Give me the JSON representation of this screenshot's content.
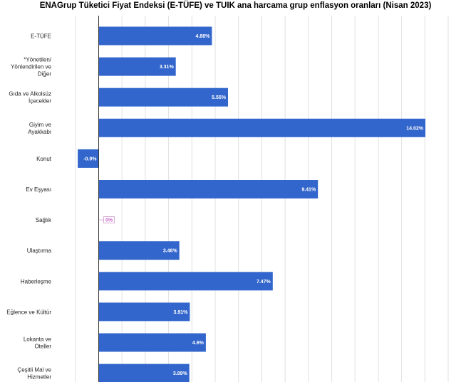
{
  "chart_data": {
    "type": "bar",
    "orientation": "horizontal",
    "title": "ENAGrup Tüketici Fiyat Endeksi (E-TÜFE) ve TUIK ana harcama grup enflasyon oranları (Nisan 2023)",
    "categories": [
      [
        "E-TÜFE"
      ],
      [
        "*Yönetilen/",
        "Yönlendirilen ve",
        "Diğer"
      ],
      [
        "Gıda ve Alkolsüz",
        "İçecekler"
      ],
      [
        "Giyim ve",
        "Ayakkabı"
      ],
      [
        "Konut"
      ],
      [
        "Ev Eşyası"
      ],
      [
        "Sağlık"
      ],
      [
        "Ulaştırma"
      ],
      [
        "Haberleşme"
      ],
      [
        "Eğlence ve Kültür"
      ],
      [
        "Lokanta ve",
        "Oteller"
      ],
      [
        "Çeşitli Mal ve",
        "Hizmetler"
      ]
    ],
    "values": [
      4.86,
      3.31,
      5.55,
      14.02,
      -0.9,
      9.41,
      0,
      3.46,
      7.47,
      3.91,
      4.6,
      3.89
    ],
    "value_labels": [
      "4.86%",
      "3.31%",
      "5.55%",
      "14.02%",
      "-0.9%",
      "9.41%",
      "0%",
      "3.46%",
      "7.47%",
      "3.91%",
      "4.6%",
      "3.89%"
    ],
    "bar_color": "#3366cc",
    "grid": true,
    "legend": "none"
  }
}
